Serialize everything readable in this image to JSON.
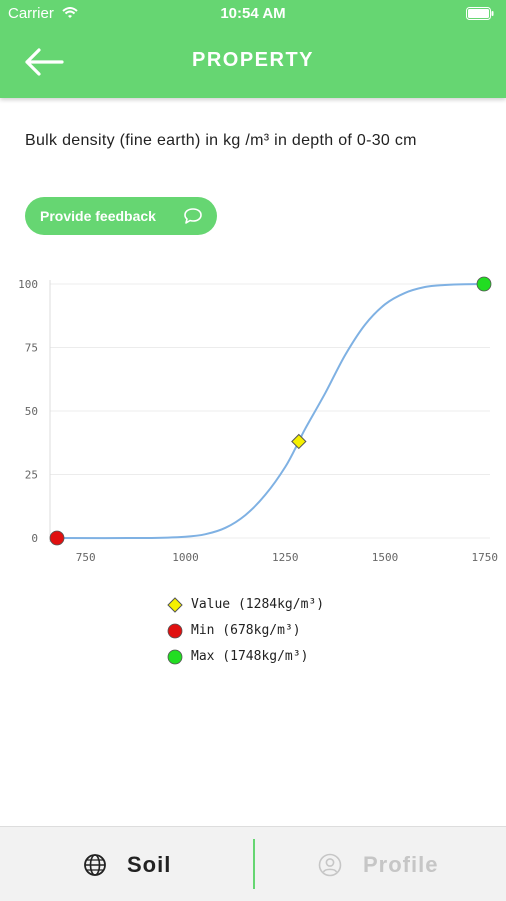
{
  "status_bar": {
    "carrier": "Carrier",
    "time": "10:54 AM"
  },
  "header": {
    "title": "PROPERTY"
  },
  "description": "Bulk density (fine earth) in kg /m³ in depth of 0-30 cm",
  "feedback_button": {
    "label": "Provide feedback"
  },
  "colors": {
    "brand_green": "#66d672",
    "curve": "#7fb1e3",
    "value_marker": "#f5f000",
    "min_marker": "#e01010",
    "max_marker": "#22dd22"
  },
  "chart_data": {
    "type": "line",
    "xlim": [
      678,
      1748
    ],
    "ylim": [
      0,
      100
    ],
    "x_ticks": [
      750,
      1000,
      1250,
      1500,
      1750
    ],
    "y_ticks": [
      0,
      25,
      50,
      75,
      100
    ],
    "grid": true,
    "curve": {
      "x": [
        678,
        900,
        1000,
        1050,
        1100,
        1150,
        1200,
        1250,
        1284,
        1300,
        1350,
        1400,
        1450,
        1500,
        1550,
        1600,
        1650,
        1700,
        1748
      ],
      "y": [
        0,
        0,
        0.5,
        1.5,
        4,
        9,
        17,
        28,
        38,
        43,
        57,
        72,
        84,
        92,
        96.5,
        98.8,
        99.6,
        99.9,
        100
      ]
    },
    "markers": [
      {
        "name": "Value",
        "x": 1284,
        "y": 38,
        "shape": "diamond",
        "color": "#f5f000"
      },
      {
        "name": "Min",
        "x": 678,
        "y": 0,
        "shape": "circle",
        "color": "#e01010"
      },
      {
        "name": "Max",
        "x": 1748,
        "y": 100,
        "shape": "circle",
        "color": "#22dd22"
      }
    ],
    "legend": [
      {
        "label": "Value (1284kg/m³)",
        "shape": "diamond",
        "color": "#f5f000"
      },
      {
        "label": "Min (678kg/m³)",
        "shape": "circle",
        "color": "#e01010"
      },
      {
        "label": "Max (1748kg/m³)",
        "shape": "circle",
        "color": "#22dd22"
      }
    ],
    "legend_position": "bottom-center"
  },
  "tabs": [
    {
      "label": "Soil",
      "icon": "globe-icon",
      "active": true
    },
    {
      "label": "Profile",
      "icon": "user-circle-icon",
      "active": false
    }
  ]
}
